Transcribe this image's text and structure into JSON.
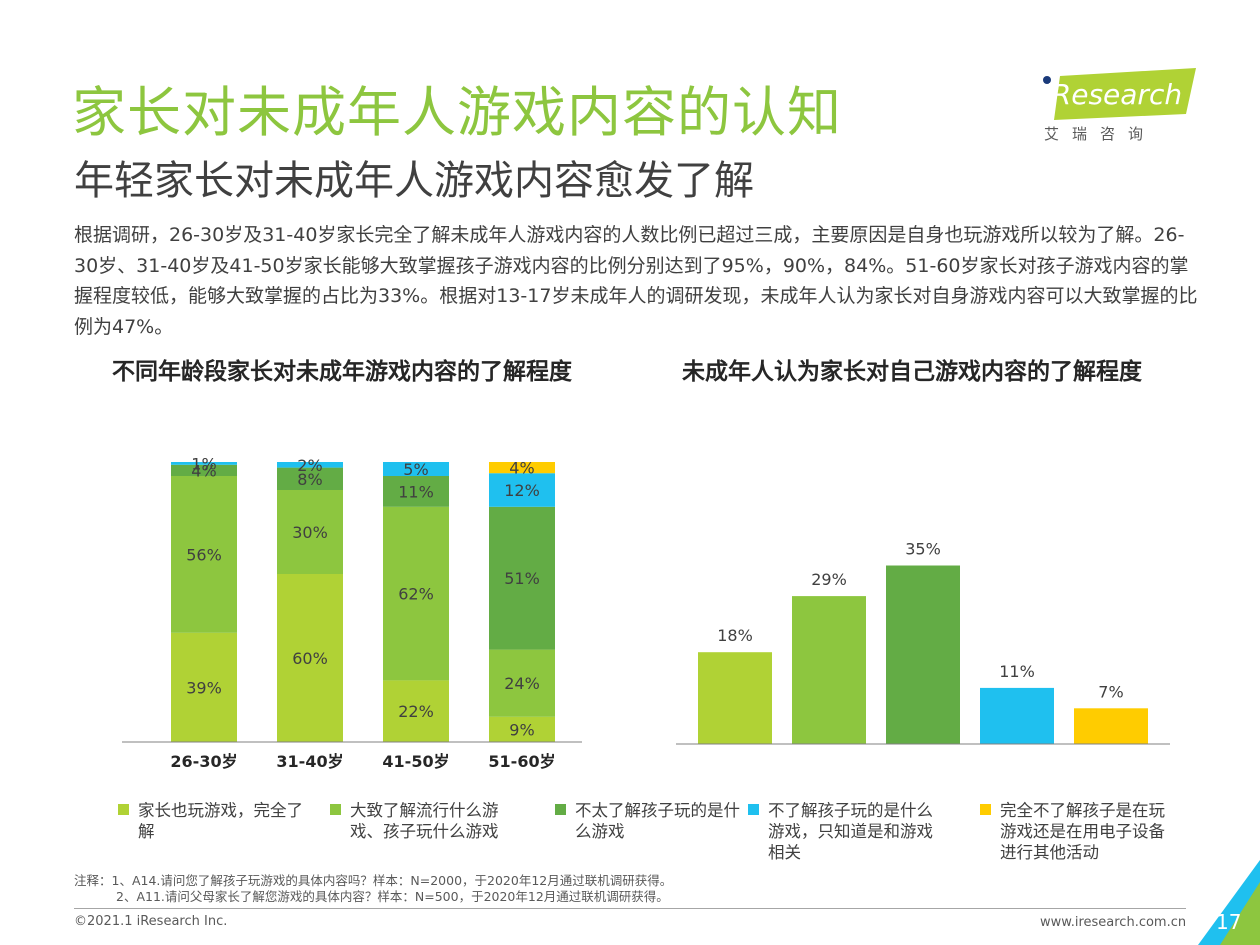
{
  "title": "家长对未成年人游戏内容的认知",
  "subtitle": "年轻家长对未成年人游戏内容愈发了解",
  "body_text": "根据调研，26-30岁及31-40岁家长完全了解未成年人游戏内容的人数比例已超过三成，主要原因是自身也玩游戏所以较为了解。26-30岁、31-40岁及41-50岁家长能够大致掌握孩子游戏内容的比例分别达到了95%，90%，84%。51-60岁家长对孩子游戏内容的掌握程度较低，能够大致掌握的占比为33%。根据对13-17岁未成年人的调研发现，未成年人认为家长对自身游戏内容可以大致掌握的比例为47%。",
  "logo": {
    "word": "iResearch",
    "sub": "艾瑞咨询"
  },
  "colors": {
    "c1": "#b0d235",
    "c2": "#8dc63f",
    "c3": "#63ac45",
    "c4": "#1fc0ef",
    "c5": "#ffcc00",
    "title": "#8dc63f"
  },
  "chart_data": [
    {
      "type": "bar",
      "stacked": true,
      "title": "不同年龄段家长对未成年游戏内容的了解程度",
      "categories": [
        "26-30岁",
        "31-40岁",
        "41-50岁",
        "51-60岁"
      ],
      "series": [
        {
          "name": "家长也玩游戏，完全了解",
          "values": [
            39,
            60,
            22,
            9
          ]
        },
        {
          "name": "大致了解流行什么游戏、孩子玩什么游戏",
          "values": [
            56,
            30,
            62,
            24
          ]
        },
        {
          "name": "不太了解孩子玩的是什么游戏",
          "values": [
            4,
            8,
            11,
            51
          ]
        },
        {
          "name": "不了解孩子玩的是什么游戏，只知道是和游戏相关",
          "values": [
            1,
            2,
            5,
            12
          ]
        },
        {
          "name": "完全不了解孩子是在玩游戏还是在用电子设备进行其他活动",
          "values": [
            0,
            0,
            0,
            4
          ]
        }
      ],
      "labels": [
        [
          "39%",
          "56%",
          "4%",
          "1%",
          ""
        ],
        [
          "60%",
          "30%",
          "8%",
          "2%",
          ""
        ],
        [
          "22%",
          "62%",
          "11%",
          "5%",
          ""
        ],
        [
          "9%",
          "24%",
          "51%",
          "12%",
          "4%"
        ]
      ],
      "ylim": [
        0,
        100
      ]
    },
    {
      "type": "bar",
      "title": "未成年人认为家长对自己游戏内容的了解程度",
      "categories": [
        "家长也玩游戏，完全了解",
        "大致了解流行什么游戏、孩子玩什么游戏",
        "不太了解孩子玩的是什么游戏",
        "不了解孩子玩的是什么游戏，只知道是和游戏相关",
        "完全不了解孩子是在玩游戏还是在用电子设备进行其他活动"
      ],
      "values": [
        18,
        29,
        35,
        11,
        7
      ],
      "labels": [
        "18%",
        "29%",
        "35%",
        "11%",
        "7%"
      ],
      "ylim": [
        0,
        40
      ]
    }
  ],
  "legend": [
    {
      "label": "家长也玩游戏，完全了解",
      "color": "#b0d235"
    },
    {
      "label": "大致了解流行什么游戏、孩子玩什么游戏",
      "color": "#8dc63f"
    },
    {
      "label": "不太了解孩子玩的是什么游戏",
      "color": "#63ac45"
    },
    {
      "label": "不了解孩子玩的是什么游戏，只知道是和游戏相关",
      "color": "#1fc0ef"
    },
    {
      "label": "完全不了解孩子是在玩游戏还是在用电子设备进行其他活动",
      "color": "#ffcc00"
    }
  ],
  "notes": {
    "line1": "注释：1、A14.请问您了解孩子玩游戏的具体内容吗？样本：N=2000，于2020年12月通过联机调研获得。",
    "line2": "2、A11.请问父母家长了解您游戏的具体内容？样本：N=500，于2020年12月通过联机调研获得。"
  },
  "footer": {
    "copyright": "©2021.1 iResearch Inc.",
    "website": "www.iresearch.com.cn",
    "page": "17"
  }
}
